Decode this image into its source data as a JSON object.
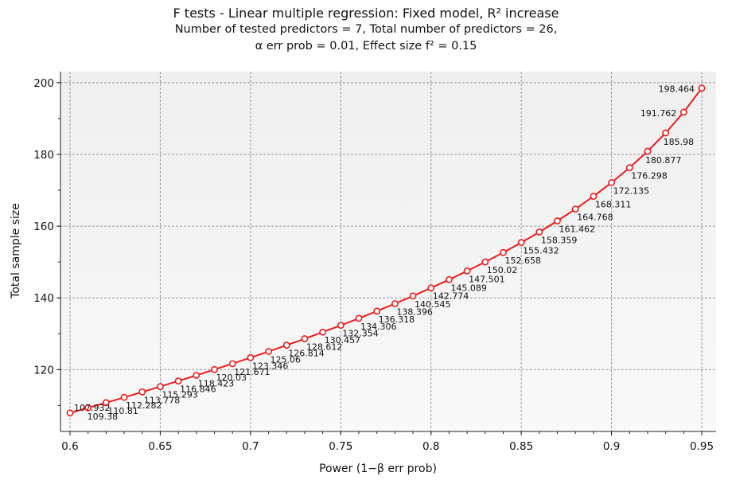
{
  "chart_data": {
    "type": "line",
    "title": "F tests - Linear multiple regression: Fixed model, R² increase",
    "subtitle_line1": "Number of tested predictors = 7, Total number of predictors = 26,",
    "subtitle_line2": "α err prob = 0.01, Effect size f² = 0.15",
    "xlabel": "Power (1−β err prob)",
    "ylabel": "Total sample size",
    "xlim": [
      0.6,
      0.95
    ],
    "ylim": [
      102,
      203
    ],
    "x_ticks": [
      "0.6",
      "0.65",
      "0.7",
      "0.75",
      "0.8",
      "0.85",
      "0.9",
      "0.95"
    ],
    "y_ticks": [
      "120",
      "140",
      "160",
      "180",
      "200"
    ],
    "grid": true,
    "series": [
      {
        "color": "#ee1c1c",
        "x": [
          0.6,
          0.61,
          0.62,
          0.63,
          0.64,
          0.65,
          0.66,
          0.67,
          0.68,
          0.69,
          0.7,
          0.71,
          0.72,
          0.73,
          0.74,
          0.75,
          0.76,
          0.77,
          0.78,
          0.79,
          0.8,
          0.81,
          0.82,
          0.83,
          0.84,
          0.85,
          0.86,
          0.87,
          0.88,
          0.89,
          0.9,
          0.91,
          0.92,
          0.93,
          0.94,
          0.95
        ],
        "y": [
          107.932,
          109.38,
          110.81,
          112.282,
          113.778,
          115.293,
          116.846,
          118.423,
          120.03,
          121.671,
          123.346,
          125.06,
          126.814,
          128.612,
          130.457,
          132.354,
          134.306,
          136.318,
          138.396,
          140.545,
          142.774,
          145.089,
          147.501,
          150.02,
          152.658,
          155.432,
          158.359,
          161.462,
          164.768,
          168.311,
          172.135,
          176.298,
          180.877,
          185.98,
          191.762,
          198.464
        ],
        "labels": [
          "107.932",
          "109.38",
          "110.81",
          "112.282",
          "113.778",
          "115.293",
          "116.846",
          "118.423",
          "120.03",
          "121.671",
          "123.346",
          "125.06",
          "126.814",
          "128.612",
          "130.457",
          "132.354",
          "134.306",
          "136.318",
          "138.396",
          "140.545",
          "142.774",
          "145.089",
          "147.501",
          "150.02",
          "152.658",
          "155.432",
          "158.359",
          "161.462",
          "164.768",
          "168.311",
          "172.135",
          "176.298",
          "180.877",
          "185.98",
          "191.762",
          "198.464"
        ]
      }
    ]
  }
}
